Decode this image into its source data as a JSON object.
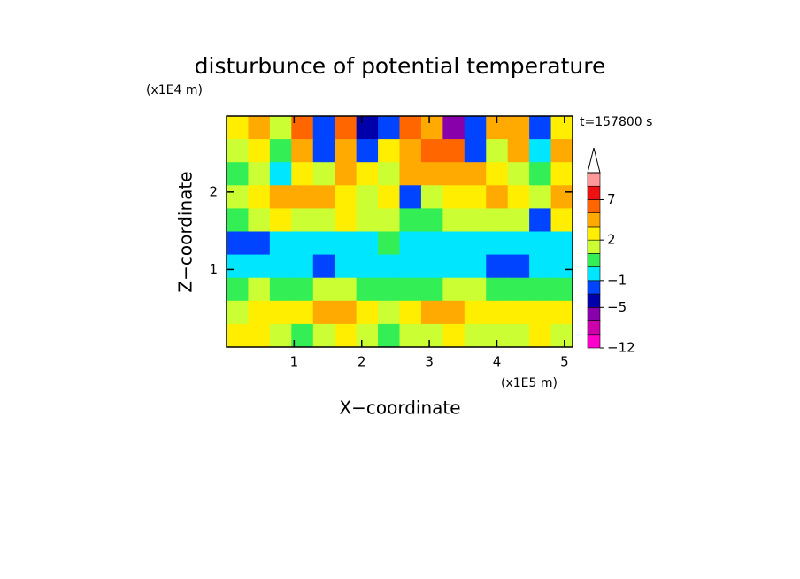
{
  "chart_data": {
    "type": "contourf",
    "title": "disturbunce of potential temperature",
    "y_unit": "(x1E4 m)",
    "x_unit": "(x1E5 m)",
    "time_label": "t=157800 s",
    "xlabel": "X−coordinate",
    "ylabel": "Z−coordinate",
    "xlim": [
      0,
      5.12
    ],
    "ylim": [
      0,
      2.98
    ],
    "xticks": [
      1,
      2,
      3,
      4,
      5
    ],
    "yticks": [
      1,
      2
    ],
    "z": [
      [
        2,
        3,
        1,
        5,
        -3,
        6,
        -4,
        -3,
        5,
        4,
        -6,
        -3,
        3,
        4,
        -2,
        2
      ],
      [
        1,
        2,
        0,
        3,
        -2,
        4,
        -3,
        2,
        4,
        5,
        6,
        -3,
        1,
        3,
        -1,
        3
      ],
      [
        0,
        1,
        -1,
        2,
        1,
        3,
        2,
        1,
        3,
        4,
        4,
        3,
        2,
        1,
        0,
        2
      ],
      [
        1,
        2,
        3,
        4,
        3,
        2,
        1,
        2,
        -2,
        1,
        2,
        2,
        3,
        2,
        1,
        3
      ],
      [
        0,
        1,
        2,
        1,
        1,
        2,
        1,
        1,
        0,
        0,
        1,
        1,
        1,
        1,
        -2,
        2
      ],
      [
        -3,
        -3,
        -1,
        -1,
        -1,
        -1,
        -1,
        0,
        -1,
        -1,
        -1,
        -1,
        -1,
        -1,
        -1,
        -1
      ],
      [
        -1,
        -1,
        -1,
        -1,
        -2,
        -1,
        -1,
        -1,
        -1,
        -1,
        -1,
        -1,
        -2,
        -3,
        -1,
        -1
      ],
      [
        0,
        1,
        0,
        0,
        1,
        1,
        0,
        0,
        0,
        0,
        1,
        1,
        0,
        0,
        0,
        0
      ],
      [
        1,
        2,
        2,
        2,
        3,
        3,
        2,
        1,
        2,
        3,
        3,
        2,
        2,
        2,
        2,
        2
      ],
      [
        2,
        2,
        1,
        0,
        1,
        2,
        1,
        0,
        1,
        1,
        2,
        1,
        1,
        1,
        2,
        1
      ]
    ],
    "colorbar": {
      "levels": [
        -12,
        -9,
        -7,
        -5,
        -3,
        -1,
        0,
        1,
        2,
        3,
        5,
        7,
        9,
        12
      ],
      "colors": [
        "#ff00cc",
        "#cc00aa",
        "#8800aa",
        "#0000aa",
        "#0044ff",
        "#00e6ff",
        "#33ee55",
        "#ccff33",
        "#ffee00",
        "#ffaa00",
        "#ff6600",
        "#ee1111",
        "#ff9999"
      ],
      "over_color": "#ffffff",
      "ticks": [
        {
          "value": -12,
          "label": "−12"
        },
        {
          "value": -5,
          "label": "−5"
        },
        {
          "value": -1,
          "label": "−1"
        },
        2,
        7
      ]
    }
  }
}
